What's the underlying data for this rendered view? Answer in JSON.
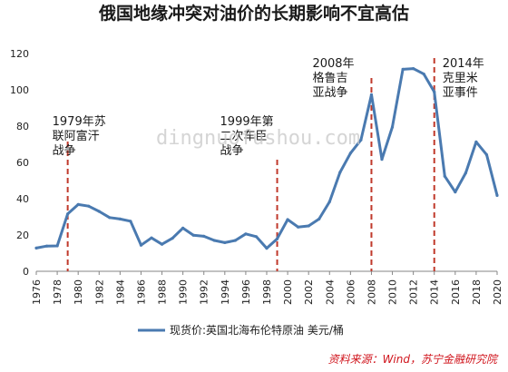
{
  "chart_data": {
    "type": "line",
    "title": "俄国地缘冲突对油价的长期影响不宜高估",
    "ylim": [
      0,
      120
    ],
    "yticks": [
      0,
      20,
      40,
      60,
      80,
      100,
      120
    ],
    "xlim": [
      1976,
      2020
    ],
    "xticks": [
      1976,
      1978,
      1980,
      1982,
      1984,
      1986,
      1988,
      1990,
      1992,
      1994,
      1996,
      1998,
      2000,
      2002,
      2004,
      2006,
      2008,
      2010,
      2012,
      2014,
      2016,
      2018,
      2020
    ],
    "grid": false,
    "legend_position": "bottom",
    "series": [
      {
        "name": "现货价:英国北海布伦特原油 美元/桶",
        "color": "#4a7ab0",
        "x": [
          1976,
          1977,
          1978,
          1979,
          1980,
          1981,
          1982,
          1983,
          1984,
          1985,
          1986,
          1987,
          1988,
          1989,
          1990,
          1991,
          1992,
          1993,
          1994,
          1995,
          1996,
          1997,
          1998,
          1999,
          2000,
          2001,
          2002,
          2003,
          2004,
          2005,
          2006,
          2007,
          2008,
          2009,
          2010,
          2011,
          2012,
          2013,
          2014,
          2015,
          2016,
          2017,
          2018,
          2019,
          2020
        ],
        "y": [
          12.8,
          13.9,
          14.0,
          31.6,
          36.8,
          35.9,
          33.0,
          29.6,
          28.8,
          27.6,
          14.4,
          18.4,
          14.9,
          18.2,
          23.8,
          19.9,
          19.3,
          17.0,
          15.8,
          17.0,
          20.6,
          19.1,
          12.7,
          17.9,
          28.5,
          24.4,
          25.0,
          28.8,
          38.3,
          54.5,
          65.1,
          72.4,
          97.3,
          61.7,
          79.5,
          111.3,
          111.7,
          108.7,
          98.9,
          52.4,
          43.7,
          54.2,
          71.3,
          64.2,
          41.8
        ]
      }
    ],
    "events": [
      {
        "year": 1979,
        "label": [
          "1979年苏",
          "联阿富汗",
          "战争"
        ]
      },
      {
        "year": 1999,
        "label": [
          "1999年第",
          "二次车臣",
          "战争"
        ]
      },
      {
        "year": 2008,
        "label": [
          "2008年",
          "格鲁吉",
          "亚战争"
        ]
      },
      {
        "year": 2014,
        "label": [
          "2014年",
          "克里米",
          "亚事件"
        ]
      }
    ],
    "event_line_color": "#c0392b",
    "source": "资料来源：Wind，苏宁金融研究院",
    "watermark": "dingnuofushou.com"
  }
}
